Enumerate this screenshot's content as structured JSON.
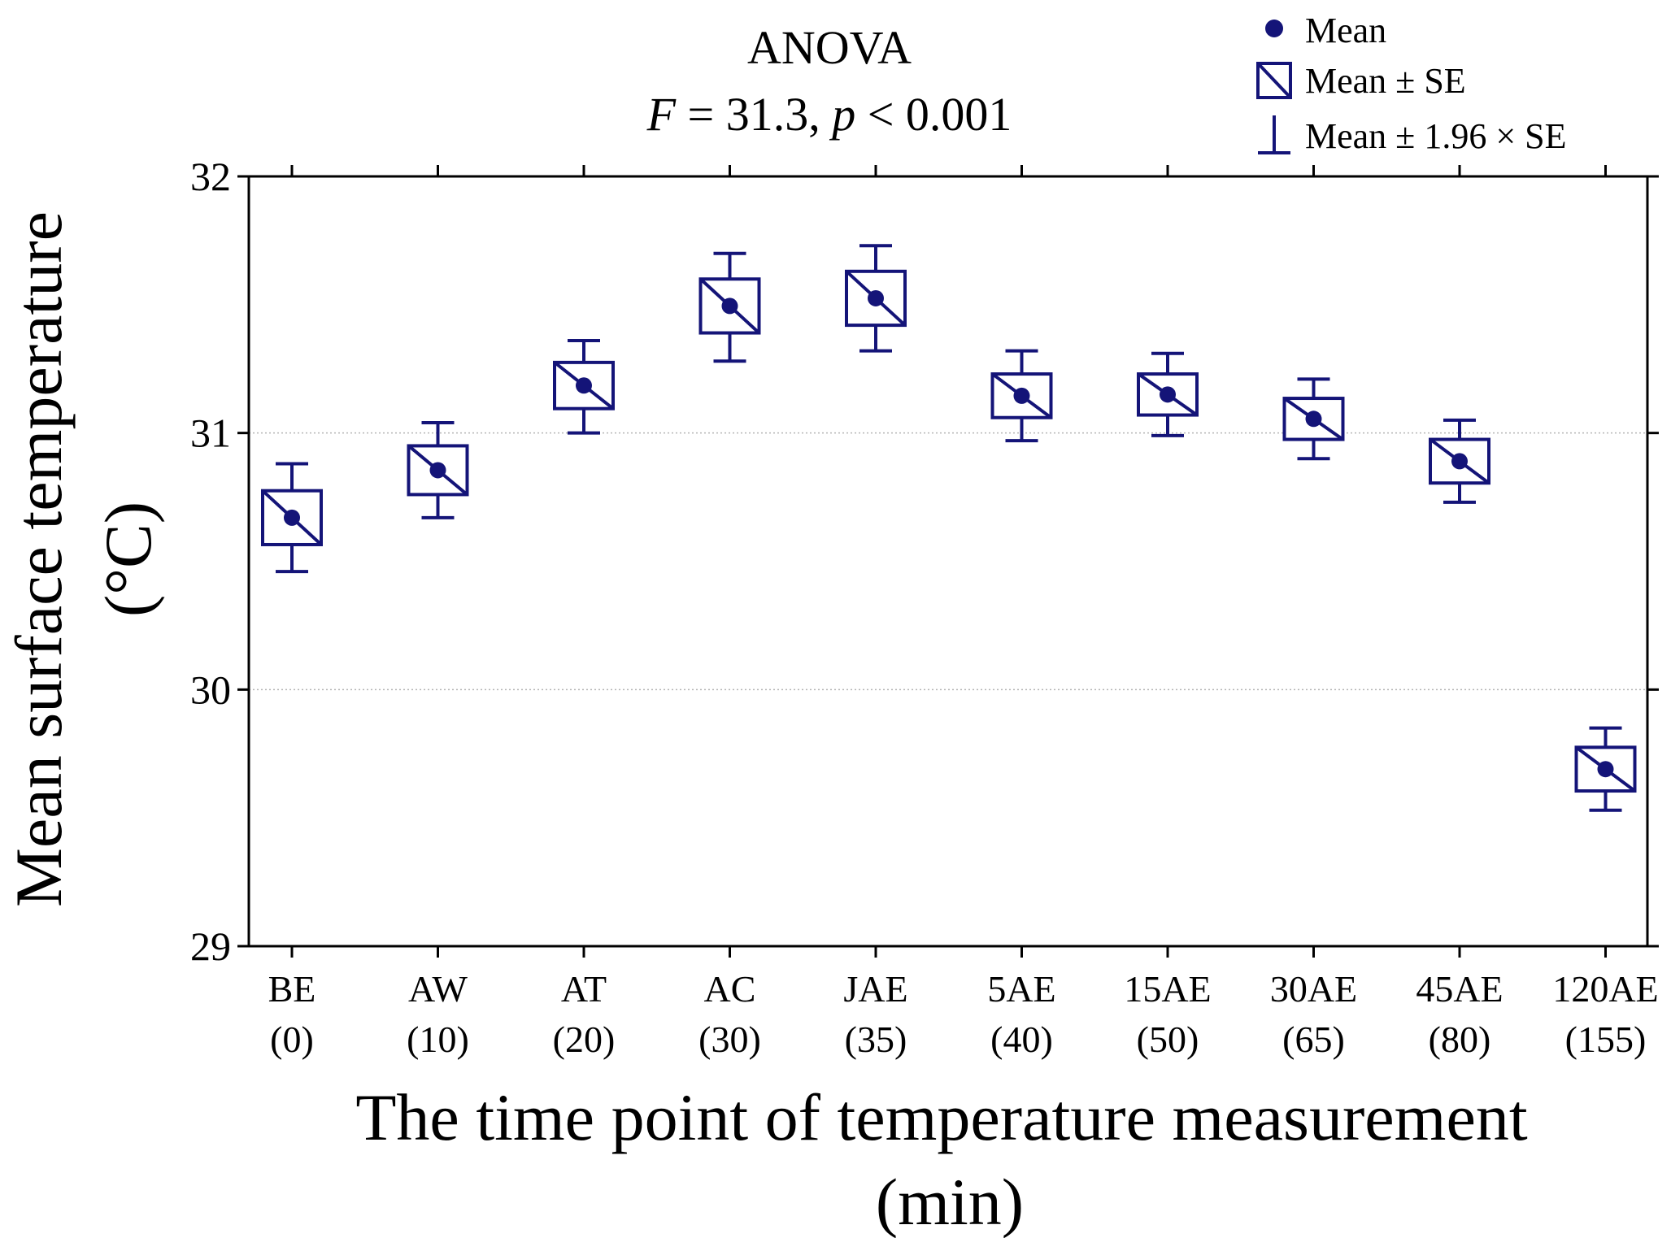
{
  "chart_data": {
    "type": "box",
    "title_line1": "ANOVA",
    "stat": {
      "F_label": "F",
      "F_rest": " = 31.3, ",
      "p_label": "p",
      "p_rest": " < 0.001"
    },
    "xlabel_line1": "The time point of temperature measurement",
    "xlabel_line2": "(min)",
    "ylabel_line1": "Mean surface temperature",
    "ylabel_line2": "(°C)",
    "ylim": [
      29,
      32
    ],
    "yticks": [
      29,
      30,
      31,
      32
    ],
    "grid": "horizontal dotted",
    "legend_position": "top-right",
    "legend": {
      "mean": "Mean",
      "se": "Mean ± SE",
      "ci": "Mean ± 1.96 × SE"
    },
    "colors": {
      "series": "#141478",
      "axis": "#000000",
      "grid": "#b4b4b4"
    },
    "categories": [
      {
        "name": "BE",
        "time": "(0)",
        "mean": 30.67,
        "se": 0.105,
        "ci_low": 30.46,
        "ci_high": 30.88
      },
      {
        "name": "AW",
        "time": "(10)",
        "mean": 30.855,
        "se": 0.095,
        "ci_low": 30.67,
        "ci_high": 31.04
      },
      {
        "name": "AT",
        "time": "(20)",
        "mean": 31.185,
        "se": 0.09,
        "ci_low": 31.0,
        "ci_high": 31.36
      },
      {
        "name": "AC",
        "time": "(30)",
        "mean": 31.495,
        "se": 0.105,
        "ci_low": 31.28,
        "ci_high": 31.7
      },
      {
        "name": "JAE",
        "time": "(35)",
        "mean": 31.525,
        "se": 0.105,
        "ci_low": 31.32,
        "ci_high": 31.73
      },
      {
        "name": "5AE",
        "time": "(40)",
        "mean": 31.145,
        "se": 0.085,
        "ci_low": 30.97,
        "ci_high": 31.32
      },
      {
        "name": "15AE",
        "time": "(50)",
        "mean": 31.15,
        "se": 0.08,
        "ci_low": 30.99,
        "ci_high": 31.31
      },
      {
        "name": "30AE",
        "time": "(65)",
        "mean": 31.055,
        "se": 0.08,
        "ci_low": 30.9,
        "ci_high": 31.21
      },
      {
        "name": "45AE",
        "time": "(80)",
        "mean": 30.89,
        "se": 0.085,
        "ci_low": 30.73,
        "ci_high": 31.05
      },
      {
        "name": "120AE",
        "time": "(155)",
        "mean": 29.69,
        "se": 0.085,
        "ci_low": 29.53,
        "ci_high": 29.85
      }
    ]
  }
}
